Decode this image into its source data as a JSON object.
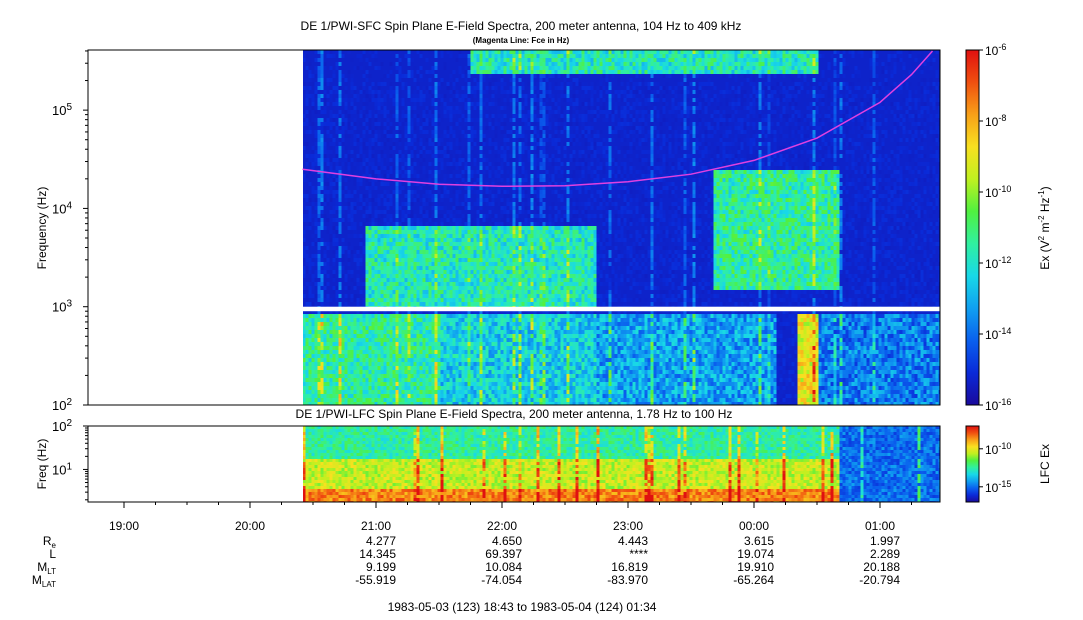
{
  "title": "DE 1/PWI-SFC  Spin Plane E-Field Spectra, 200 meter antenna, 104 Hz to 409 kHz",
  "subtitle": "(Magenta Line: Fce in Hz)",
  "colors": {
    "magenta": "#e040e0",
    "colormap": [
      "#1a0a9c",
      "#0a2ad8",
      "#0a60ee",
      "#10a0f0",
      "#18d8e8",
      "#30f0a0",
      "#50f040",
      "#c0f020",
      "#f8e020",
      "#f8a018",
      "#f05010",
      "#e01010"
    ]
  },
  "chart_data": [
    {
      "type": "heatmap",
      "title": "DE 1/PWI-SFC  Spin Plane E-Field Spectra, 200 meter antenna, 104 Hz to 409 kHz",
      "subtitle": "(Magenta Line: Fce in Hz)",
      "xlabel": "",
      "ylabel": "Frequency (Hz)",
      "y_scale": "log",
      "ylim": [
        100,
        409000
      ],
      "y_ticks": [
        {
          "value": 100,
          "base": "10",
          "exp": "2"
        },
        {
          "value": 1000,
          "base": "10",
          "exp": "3"
        },
        {
          "value": 10000,
          "base": "10",
          "exp": "4"
        },
        {
          "value": 100000,
          "base": "10",
          "exp": "5"
        }
      ],
      "data_start": "20:25",
      "data_end": "01:34",
      "gap_rows_hz": [
        900,
        1000
      ],
      "fce_line": {
        "name": "Fce",
        "x": [
          "20:25",
          "21:00",
          "21:30",
          "22:00",
          "22:30",
          "23:00",
          "23:30",
          "00:00",
          "00:30",
          "01:00",
          "01:15",
          "01:25"
        ],
        "y": [
          25000,
          20000,
          17600,
          16800,
          17000,
          18700,
          22300,
          30800,
          52000,
          120000,
          230000,
          400000
        ]
      },
      "colorbar": {
        "label_base": "Ex (V",
        "label_exp1": "2",
        "label_mid": " m",
        "label_exp2": "-2",
        "label_mid2": " Hz",
        "label_exp3": "-1",
        "label_end": ")",
        "range_log10": [
          -16,
          -6
        ],
        "ticks": [
          {
            "base": "10",
            "exp": "-6"
          },
          {
            "base": "10",
            "exp": "-8"
          },
          {
            "base": "10",
            "exp": "-10"
          },
          {
            "base": "10",
            "exp": "-12"
          },
          {
            "base": "10",
            "exp": "-14"
          },
          {
            "base": "10",
            "exp": "-16"
          }
        ]
      },
      "intensity_regions_log10": [
        {
          "t0": "20:25",
          "t1": "21:30",
          "f0": 100,
          "f1": 900,
          "level": -11.5
        },
        {
          "t0": "21:30",
          "t1": "22:45",
          "f0": 100,
          "f1": 900,
          "level": -12.5
        },
        {
          "t0": "22:45",
          "t1": "00:10",
          "f0": 100,
          "f1": 900,
          "level": -13.2
        },
        {
          "t0": "00:20",
          "t1": "00:30",
          "f0": 100,
          "f1": 900,
          "level": -9.0
        },
        {
          "t0": "00:30",
          "t1": "01:34",
          "f0": 100,
          "f1": 900,
          "level": -13.8
        },
        {
          "t0": "20:55",
          "t1": "22:45",
          "f0": 1000,
          "f1": 7000,
          "level": -11.8
        },
        {
          "t0": "23:40",
          "t1": "00:40",
          "f0": 1500,
          "f1": 25000,
          "level": -11.5
        },
        {
          "t0": "21:45",
          "t1": "00:30",
          "f0": 250000,
          "f1": 409000,
          "level": -11.8
        }
      ]
    },
    {
      "type": "heatmap",
      "title": "DE 1/PWI-LFC  Spin Plane E-Field Spectra, 200 meter antenna, 1.78 Hz to 100 Hz",
      "ylabel": "Freq (Hz)",
      "y_scale": "log",
      "ylim": [
        1.78,
        100
      ],
      "y_ticks": [
        {
          "value": 10,
          "base": "10",
          "exp": "1"
        },
        {
          "value": 100,
          "base": "10",
          "exp": "2"
        }
      ],
      "data_start": "20:25",
      "data_end": "01:34",
      "colorbar": {
        "label": "LFC Ex",
        "range_log10": [
          -17,
          -7
        ],
        "ticks": [
          {
            "base": "10",
            "exp": "-10"
          },
          {
            "base": "10",
            "exp": "-15"
          }
        ]
      },
      "intensity_regions_log10": [
        {
          "t0": "20:25",
          "t1": "00:40",
          "f0": 1.78,
          "f1": 4,
          "level": -8.5
        },
        {
          "t0": "20:25",
          "t1": "00:40",
          "f0": 4,
          "f1": 20,
          "level": -10.5
        },
        {
          "t0": "20:25",
          "t1": "00:40",
          "f0": 20,
          "f1": 100,
          "level": -12.5
        },
        {
          "t0": "00:40",
          "t1": "01:34",
          "f0": 1.78,
          "f1": 100,
          "level": -15.0
        }
      ]
    }
  ],
  "x_axis": {
    "ticks": [
      "19:00",
      "20:00",
      "21:00",
      "22:00",
      "23:00",
      "00:00",
      "01:00"
    ]
  },
  "ephemeris": {
    "rows": [
      {
        "label_base": "R",
        "label_sub": "e",
        "values": [
          "",
          "",
          "4.277",
          "4.650",
          "4.443",
          "3.615",
          "1.997"
        ]
      },
      {
        "label_base": "L",
        "label_sub": "",
        "values": [
          "",
          "",
          "14.345",
          "69.397",
          "****",
          "19.074",
          "2.289"
        ]
      },
      {
        "label_base": "M",
        "label_sub": "LT",
        "values": [
          "",
          "",
          "9.199",
          "10.084",
          "16.819",
          "19.910",
          "20.188"
        ]
      },
      {
        "label_base": "M",
        "label_sub": "LAT",
        "values": [
          "",
          "",
          "-55.919",
          "-74.054",
          "-83.970",
          "-65.264",
          "-20.794"
        ]
      }
    ]
  },
  "time_range": "1983-05-03 (123) 18:43 to 1983-05-04 (124) 01:34"
}
